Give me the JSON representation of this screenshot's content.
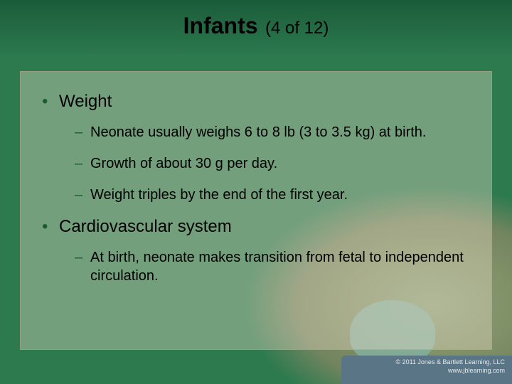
{
  "title": "Infants",
  "title_count": "(4 of 12)",
  "bullets": [
    {
      "level": 1,
      "text": "Weight"
    },
    {
      "level": 2,
      "text": "Neonate usually weighs 6 to 8 lb (3 to 3.5 kg) at birth."
    },
    {
      "level": 2,
      "text": "Growth of about 30 g per day."
    },
    {
      "level": 2,
      "text": "Weight triples by the end of the first year."
    },
    {
      "level": 1,
      "text": "Cardiovascular system"
    },
    {
      "level": 2,
      "text": "At birth, neonate makes transition from fetal to independent circulation."
    }
  ],
  "footer": {
    "copyright": "© 2011 Jones & Bartlett Learning, LLC",
    "url": "www.jblearning.com"
  },
  "colors": {
    "bg_top": "#1a5c3a",
    "bg_main": "#2d7a4f",
    "box_fill": "rgba(245,230,210,0.35)",
    "box_border": "rgba(180,160,130,0.6)",
    "bullet_color": "#1a5c3a",
    "footer_band": "#5a7585"
  }
}
